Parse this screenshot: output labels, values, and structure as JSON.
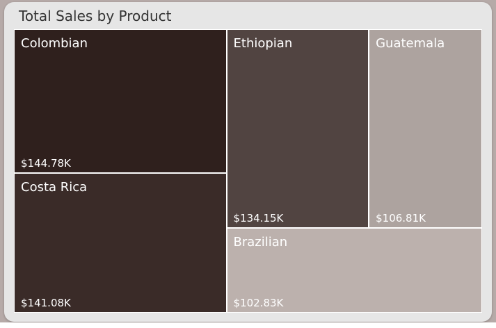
{
  "chart_data": {
    "type": "treemap",
    "title": "Total Sales by Product",
    "items": [
      {
        "name": "Colombian",
        "value": 144.78,
        "label": "$144.78K",
        "color": "#2f201d"
      },
      {
        "name": "Costa Rica",
        "value": 141.08,
        "label": "$141.08K",
        "color": "#3a2b28"
      },
      {
        "name": "Ethiopian",
        "value": 134.15,
        "label": "$134.15K",
        "color": "#514441"
      },
      {
        "name": "Guatemala",
        "value": 106.81,
        "label": "$106.81K",
        "color": "#ada39f"
      },
      {
        "name": "Brazilian",
        "value": 102.83,
        "label": "$102.83K",
        "color": "#bcb1ad"
      }
    ]
  }
}
